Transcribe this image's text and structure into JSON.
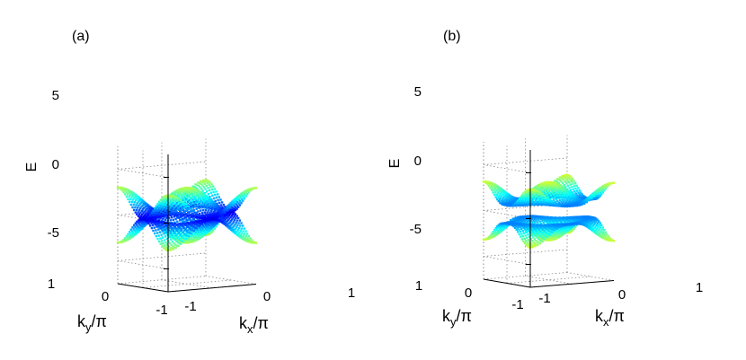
{
  "chart_data": [
    {
      "type": "surface",
      "panel_label": "(a)",
      "zlabel": "E",
      "xlabel_main": "k",
      "xlabel_sub": "x",
      "xlabel_tail": "/π",
      "ylabel_main": "k",
      "ylabel_sub": "y",
      "ylabel_tail": "/π",
      "z_ticks": [
        "5",
        "0",
        "-5"
      ],
      "x_ticks": [
        "-1",
        "0",
        "1"
      ],
      "y_ticks": [
        "1",
        "0",
        "-1"
      ],
      "zlim": [
        -7.5,
        7.5
      ],
      "xlim": [
        -1,
        1
      ],
      "ylim": [
        -1,
        1
      ],
      "grid": true,
      "colormap": "jet",
      "bands": "upper and lower",
      "gap": 0,
      "e_max": 6
    },
    {
      "type": "surface",
      "panel_label": "(b)",
      "zlabel": "E",
      "xlabel_main": "k",
      "xlabel_sub": "x",
      "xlabel_tail": "/π",
      "ylabel_main": "k",
      "ylabel_sub": "y",
      "ylabel_tail": "/π",
      "z_ticks": [
        "5",
        "0",
        "-5"
      ],
      "x_ticks": [
        "-1",
        "0",
        "1"
      ],
      "y_ticks": [
        "1",
        "0",
        "-1"
      ],
      "zlim": [
        -7.5,
        7.5
      ],
      "xlim": [
        -1,
        1
      ],
      "ylim": [
        -1,
        1
      ],
      "grid": true,
      "colormap": "jet",
      "bands": "upper and lower",
      "gap": 1,
      "e_max": 6
    }
  ]
}
